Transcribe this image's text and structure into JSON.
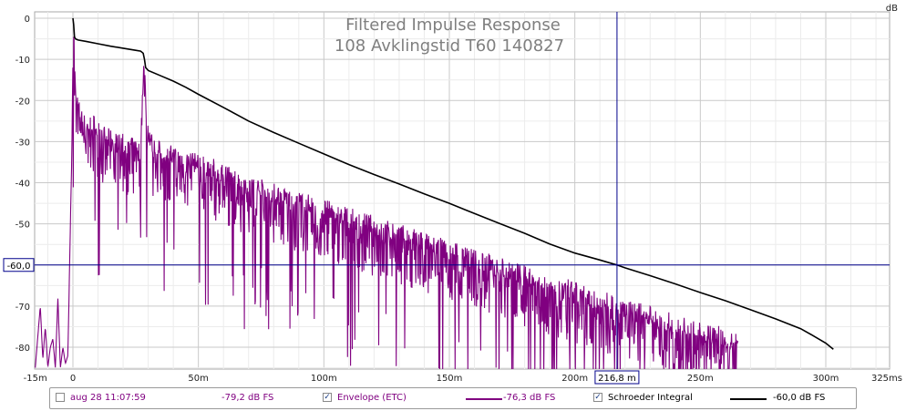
{
  "chart_data": {
    "type": "line",
    "title": "Filtered Impulse Response",
    "subtitle": "108 Avklingstid T60 140827",
    "ylabel": "dB",
    "xlabel": "",
    "xlim": [
      -15,
      325
    ],
    "ylim": [
      -85,
      1
    ],
    "x_unit": "ms",
    "y_ticks": [
      0,
      -10,
      -20,
      -30,
      -40,
      -50,
      -60,
      -70,
      -80
    ],
    "y_tick_labels": [
      "0",
      "-10",
      "-20",
      "-30",
      "-40",
      "-50",
      "-60,0",
      "-70",
      "-80"
    ],
    "x_ticks": [
      -15,
      0,
      50,
      100,
      150,
      200,
      250,
      300,
      325
    ],
    "x_tick_labels": [
      "-15m",
      "0",
      "50m",
      "100m",
      "150m",
      "200m",
      "250m",
      "300m",
      "325ms"
    ],
    "grid": true,
    "cursor": {
      "x": 216.8,
      "x_label": "216,8 m",
      "y": -60.0,
      "y_label": "-60,0"
    },
    "series": [
      {
        "name": "Envelope (ETC)",
        "color": "#800080",
        "x": [
          -15,
          -13,
          -12,
          -11,
          -10,
          -9,
          -8,
          -7,
          -6,
          -5,
          -4,
          -3,
          -2,
          -1,
          -0.5,
          0,
          0.3,
          1,
          2,
          3,
          4,
          6,
          8,
          10,
          12,
          15,
          18,
          20,
          22,
          25,
          27,
          28,
          28.5,
          29,
          30,
          32,
          35,
          40,
          45,
          50,
          55,
          60,
          65,
          70,
          75,
          80,
          85,
          90,
          95,
          100,
          110,
          120,
          130,
          140,
          150,
          160,
          170,
          180,
          190,
          200,
          210,
          220,
          230,
          240,
          250,
          260,
          265
        ],
        "y": [
          -85,
          -70,
          -83,
          -75,
          -85,
          -80,
          -78,
          -85,
          -68,
          -85,
          -80,
          -84,
          -82,
          -50,
          -35,
          -10,
          -2,
          -18,
          -22,
          -24,
          -26,
          -27,
          -26,
          -28,
          -29,
          -30,
          -31,
          -31,
          -32,
          -32,
          -33,
          -14,
          -10,
          -22,
          -28,
          -32,
          -33,
          -34,
          -35,
          -36,
          -37,
          -38,
          -40,
          -41,
          -42,
          -43,
          -44,
          -45,
          -46,
          -47,
          -49,
          -51,
          -53,
          -55,
          -57,
          -59,
          -61,
          -63,
          -65,
          -67,
          -69,
          -71,
          -73,
          -75,
          -77,
          -78,
          -79.2
        ]
      },
      {
        "name": "Schroeder Integral",
        "color": "#000000",
        "x": [
          0,
          0.3,
          0.6,
          1,
          2,
          5,
          10,
          15,
          20,
          25,
          27,
          28,
          28.5,
          29,
          30,
          35,
          40,
          45,
          50,
          60,
          70,
          80,
          90,
          100,
          110,
          120,
          130,
          140,
          150,
          160,
          170,
          180,
          190,
          200,
          210,
          216.8,
          220,
          230,
          240,
          250,
          260,
          270,
          280,
          290,
          295,
          300,
          303
        ],
        "y": [
          0,
          -1.5,
          -4.5,
          -5,
          -5.3,
          -5.6,
          -6.2,
          -6.8,
          -7.3,
          -7.8,
          -8,
          -8.5,
          -10,
          -12,
          -12.7,
          -14,
          -15.3,
          -16.8,
          -18.5,
          -21.7,
          -25,
          -27.8,
          -30.4,
          -33,
          -35.6,
          -38,
          -40.3,
          -42.7,
          -45,
          -47.5,
          -49.9,
          -52.3,
          -54.9,
          -57.1,
          -58.8,
          -60,
          -60.7,
          -62.6,
          -64.6,
          -66.7,
          -68.7,
          -70.9,
          -73.1,
          -75.5,
          -77.2,
          -79,
          -80.5
        ]
      }
    ]
  },
  "legend": {
    "items": [
      {
        "checked": false,
        "check_glyph": "",
        "label": "aug 28 11:07:59",
        "value": "-79,2 dB FS",
        "label_color": "#800080",
        "value_color": "#800080"
      },
      {
        "checked": true,
        "check_glyph": "✓",
        "label": "Envelope (ETC)",
        "value": "-76,3 dB FS",
        "label_color": "#800080",
        "value_color": "#800080"
      },
      {
        "checked": true,
        "check_glyph": "✓",
        "label": "Schroeder Integral",
        "value": "-60,0 dB FS",
        "label_color": "#000000",
        "value_color": "#000000"
      }
    ]
  }
}
